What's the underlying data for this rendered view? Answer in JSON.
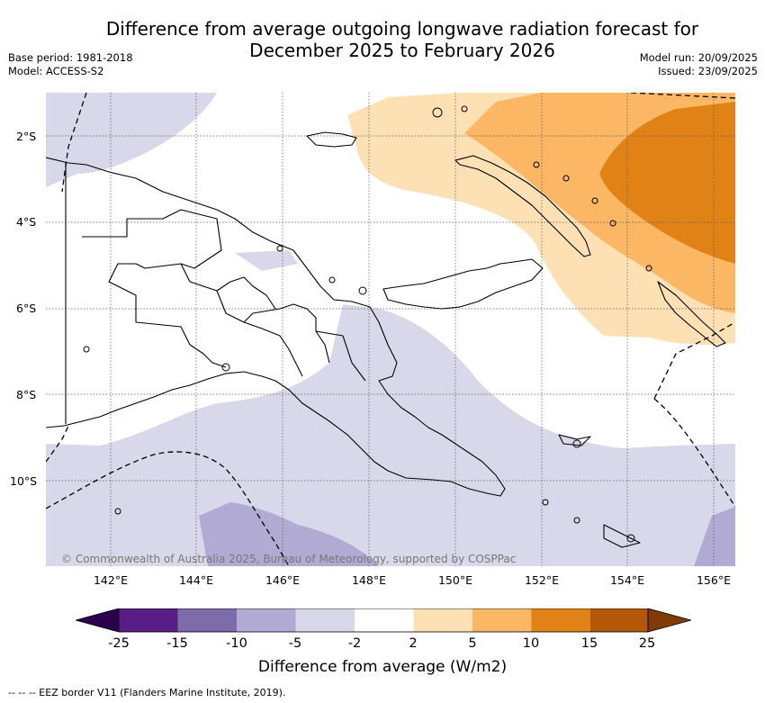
{
  "header": {
    "title_line1": "Difference from average outgoing longwave radiation forecast for",
    "title_line2": "December 2025 to February 2026",
    "base_period": "Base period: 1981-2018",
    "model": "Model: ACCESS-S2",
    "model_run": "Model run: 20/09/2025",
    "issued": "Issued: 23/09/2025"
  },
  "map": {
    "lat_labels": [
      "2°S",
      "4°S",
      "6°S",
      "8°S",
      "10°S"
    ],
    "lon_labels": [
      "142°E",
      "144°E",
      "146°E",
      "148°E",
      "150°E",
      "152°E",
      "154°E",
      "156°E"
    ],
    "copyright": "© Commonwealth of Australia 2025, Bureau of Meteorology, supported by COSPPac",
    "colors": {
      "neg_light": "#d8d8ea",
      "neg_mid": "#b1aad3",
      "pos_light": "#fde1b4",
      "pos_mid": "#fbb763",
      "pos_strong": "#e08216",
      "land_outline": "#000000"
    }
  },
  "colorbar": {
    "ticks": [
      "-25",
      "-15",
      "-10",
      "-5",
      "-2",
      "2",
      "5",
      "10",
      "15",
      "25"
    ],
    "colors": [
      "#581e85",
      "#7d6ca9",
      "#b1aad3",
      "#d8d8ea",
      "#ffffff",
      "#fde1b4",
      "#fbb763",
      "#e08216",
      "#b35807"
    ],
    "low_extend_color": "#2c004e",
    "high_extend_color": "#7f3b08",
    "label": "Difference from average (W/m2)"
  },
  "legend": {
    "eez": "-- -- -- EEZ border V11 (Flanders Marine Institute, 2019)."
  }
}
